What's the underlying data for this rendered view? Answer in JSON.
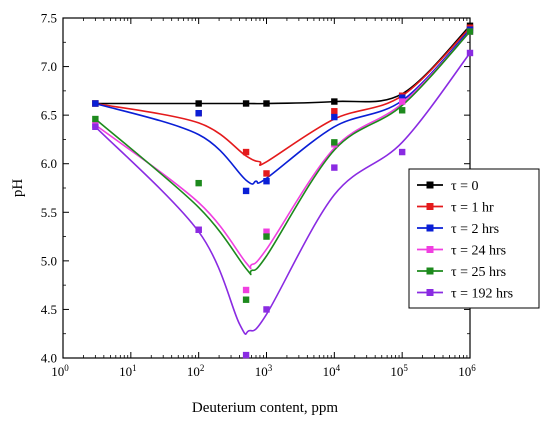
{
  "chart_data": {
    "type": "scatter",
    "title": "",
    "xlabel": "Deuterium content, ppm",
    "ylabel": "pH",
    "xscale": "log",
    "xlim": [
      1,
      1000000
    ],
    "ylim": [
      4.0,
      7.5
    ],
    "x_ticks": [
      1,
      10,
      100,
      1000,
      10000,
      100000,
      1000000
    ],
    "x_tick_labels": [
      {
        "base": "10",
        "exp": "0"
      },
      {
        "base": "10",
        "exp": "1"
      },
      {
        "base": "10",
        "exp": "2"
      },
      {
        "base": "10",
        "exp": "3"
      },
      {
        "base": "10",
        "exp": "4"
      },
      {
        "base": "10",
        "exp": "5"
      },
      {
        "base": "10",
        "exp": "6"
      }
    ],
    "y_ticks": [
      4.0,
      4.5,
      5.0,
      5.5,
      6.0,
      6.5,
      7.0,
      7.5
    ],
    "y_tick_labels": [
      "4.0",
      "4.5",
      "5.0",
      "5.5",
      "6.0",
      "6.5",
      "7.0",
      "7.5"
    ],
    "grid": false,
    "legend_position": "right",
    "x": [
      3,
      100,
      500,
      1000,
      10000,
      100000,
      1000000
    ],
    "series": [
      {
        "name": "τ = 0",
        "color": "#000000",
        "points": [
          [
            3,
            6.62
          ],
          [
            100,
            6.62
          ],
          [
            500,
            6.62
          ],
          [
            1000,
            6.62
          ],
          [
            10000,
            6.64
          ],
          [
            100000,
            6.7
          ],
          [
            1000000,
            7.42
          ]
        ],
        "curve": [
          [
            3,
            6.62
          ],
          [
            100,
            6.62
          ],
          [
            500,
            6.62
          ],
          [
            1000,
            6.62
          ],
          [
            10000,
            6.64
          ],
          [
            100000,
            6.72
          ],
          [
            1000000,
            7.42
          ]
        ]
      },
      {
        "name": "τ = 1 hr",
        "color": "#e41a1c",
        "points": [
          [
            3,
            6.62
          ],
          [
            100,
            6.52
          ],
          [
            500,
            6.12
          ],
          [
            1000,
            5.9
          ],
          [
            10000,
            6.54
          ],
          [
            100000,
            6.7
          ],
          [
            1000000,
            7.4
          ]
        ],
        "curve": [
          [
            3,
            6.62
          ],
          [
            100,
            6.42
          ],
          [
            500,
            6.08
          ],
          [
            800,
            6.02
          ],
          [
            1000,
            6.02
          ],
          [
            10000,
            6.46
          ],
          [
            100000,
            6.7
          ],
          [
            1000000,
            7.4
          ]
        ]
      },
      {
        "name": "τ = 2 hrs",
        "color": "#0a1fd6",
        "points": [
          [
            3,
            6.62
          ],
          [
            100,
            6.52
          ],
          [
            500,
            5.72
          ],
          [
            1000,
            5.82
          ],
          [
            10000,
            6.48
          ],
          [
            100000,
            6.68
          ],
          [
            1000000,
            7.38
          ]
        ],
        "curve": [
          [
            3,
            6.62
          ],
          [
            100,
            6.3
          ],
          [
            500,
            5.83
          ],
          [
            700,
            5.82
          ],
          [
            1000,
            5.85
          ],
          [
            10000,
            6.38
          ],
          [
            100000,
            6.65
          ],
          [
            1000000,
            7.38
          ]
        ]
      },
      {
        "name": "τ = 24 hrs",
        "color": "#f03fe0",
        "points": [
          [
            3,
            6.4
          ],
          [
            100,
            5.32
          ],
          [
            500,
            4.7
          ],
          [
            1000,
            5.3
          ],
          [
            10000,
            6.2
          ],
          [
            100000,
            6.64
          ],
          [
            1000000,
            7.36
          ]
        ],
        "curve": [
          [
            3,
            6.4
          ],
          [
            100,
            5.6
          ],
          [
            500,
            4.98
          ],
          [
            600,
            4.96
          ],
          [
            1000,
            5.12
          ],
          [
            10000,
            6.16
          ],
          [
            100000,
            6.62
          ],
          [
            1000000,
            7.36
          ]
        ]
      },
      {
        "name": "τ = 25 hrs",
        "color": "#1d8a1d",
        "points": [
          [
            3,
            6.46
          ],
          [
            100,
            5.8
          ],
          [
            500,
            4.6
          ],
          [
            1000,
            5.25
          ],
          [
            10000,
            6.22
          ],
          [
            100000,
            6.55
          ],
          [
            1000000,
            7.36
          ]
        ],
        "curve": [
          [
            3,
            6.46
          ],
          [
            100,
            5.55
          ],
          [
            500,
            4.92
          ],
          [
            600,
            4.9
          ],
          [
            1000,
            5.05
          ],
          [
            10000,
            6.14
          ],
          [
            100000,
            6.6
          ],
          [
            1000000,
            7.36
          ]
        ]
      },
      {
        "name": "τ = 192 hrs",
        "color": "#8a2be2",
        "points": [
          [
            3,
            6.38
          ],
          [
            100,
            5.32
          ],
          [
            500,
            4.03
          ],
          [
            1000,
            4.5
          ],
          [
            10000,
            5.96
          ],
          [
            100000,
            6.12
          ],
          [
            1000000,
            7.14
          ]
        ],
        "curve": [
          [
            3,
            6.38
          ],
          [
            100,
            5.3
          ],
          [
            400,
            4.35
          ],
          [
            550,
            4.28
          ],
          [
            1000,
            4.45
          ],
          [
            10000,
            5.68
          ],
          [
            100000,
            6.22
          ],
          [
            1000000,
            7.14
          ]
        ]
      }
    ]
  }
}
